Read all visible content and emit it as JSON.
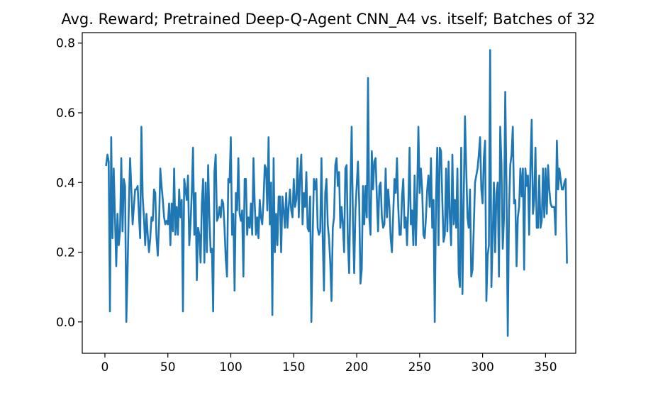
{
  "chart_data": {
    "type": "line",
    "title": "Avg. Reward; Pretrained Deep-Q-Agent CNN_A4 vs. itself; Batches of 32",
    "xlabel": "",
    "ylabel": "",
    "xlim": [
      -18,
      374
    ],
    "ylim": [
      -0.09,
      0.83
    ],
    "x_ticks": [
      0,
      50,
      100,
      150,
      200,
      250,
      300,
      350
    ],
    "x_tick_labels": [
      "0",
      "50",
      "100",
      "150",
      "200",
      "250",
      "300",
      "350"
    ],
    "y_ticks": [
      0.0,
      0.2,
      0.4,
      0.6,
      0.8
    ],
    "y_tick_labels": [
      "0.0",
      "0.2",
      "0.4",
      "0.6",
      "0.8"
    ],
    "grid": false,
    "series": [
      {
        "color": "#1f77b4",
        "x_start": 1,
        "x_step": 1,
        "values": [
          0.45,
          0.48,
          0.46,
          0.03,
          0.53,
          0.24,
          0.44,
          0.3,
          0.16,
          0.31,
          0.22,
          0.26,
          0.47,
          0.26,
          0.41,
          0.39,
          0.0,
          0.15,
          0.33,
          0.47,
          0.38,
          0.28,
          0.33,
          0.38,
          0.38,
          0.39,
          0.31,
          0.24,
          0.56,
          0.36,
          0.3,
          0.22,
          0.31,
          0.25,
          0.2,
          0.24,
          0.3,
          0.29,
          0.38,
          0.37,
          0.24,
          0.19,
          0.28,
          0.44,
          0.39,
          0.35,
          0.3,
          0.28,
          0.29,
          0.28,
          0.34,
          0.22,
          0.34,
          0.26,
          0.44,
          0.25,
          0.33,
          0.25,
          0.38,
          0.3,
          0.35,
          0.03,
          0.41,
          0.38,
          0.35,
          0.42,
          0.22,
          0.28,
          0.37,
          0.5,
          0.25,
          0.37,
          0.12,
          0.27,
          0.25,
          0.17,
          0.34,
          0.41,
          0.17,
          0.4,
          0.2,
          0.45,
          0.3,
          0.2,
          0.21,
          0.03,
          0.43,
          0.48,
          0.29,
          0.3,
          0.33,
          0.3,
          0.35,
          0.34,
          0.27,
          0.18,
          0.13,
          0.41,
          0.4,
          0.53,
          0.25,
          0.31,
          0.09,
          0.37,
          0.32,
          0.47,
          0.31,
          0.29,
          0.32,
          0.13,
          0.41,
          0.41,
          0.25,
          0.3,
          0.27,
          0.34,
          0.25,
          0.47,
          0.34,
          0.25,
          0.3,
          0.24,
          0.35,
          0.3,
          0.28,
          0.35,
          0.45,
          0.44,
          0.32,
          0.53,
          0.28,
          0.4,
          0.02,
          0.47,
          0.2,
          0.31,
          0.22,
          0.36,
          0.36,
          0.2,
          0.36,
          0.32,
          0.27,
          0.37,
          0.27,
          0.33,
          0.38,
          0.32,
          0.3,
          0.41,
          0.33,
          0.35,
          0.47,
          0.3,
          0.42,
          0.48,
          0.28,
          0.37,
          0.33,
          0.43,
          0.27,
          0.26,
          0.36,
          0.0,
          0.24,
          0.41,
          0.38,
          0.41,
          0.27,
          0.25,
          0.26,
          0.47,
          0.24,
          0.09,
          0.37,
          0.41,
          0.28,
          0.24,
          0.17,
          0.06,
          0.27,
          0.3,
          0.45,
          0.47,
          0.39,
          0.43,
          0.27,
          0.33,
          0.28,
          0.2,
          0.44,
          0.45,
          0.23,
          0.14,
          0.38,
          0.56,
          0.29,
          0.14,
          0.32,
          0.39,
          0.46,
          0.34,
          0.11,
          0.15,
          0.39,
          0.28,
          0.39,
          0.3,
          0.7,
          0.3,
          0.25,
          0.49,
          0.38,
          0.46,
          0.47,
          0.36,
          0.26,
          0.39,
          0.4,
          0.3,
          0.27,
          0.28,
          0.44,
          0.3,
          0.38,
          0.33,
          0.24,
          0.2,
          0.31,
          0.41,
          0.37,
          0.47,
          0.33,
          0.25,
          0.25,
          0.36,
          0.41,
          0.27,
          0.3,
          0.22,
          0.33,
          0.5,
          0.28,
          0.32,
          0.22,
          0.42,
          0.22,
          0.36,
          0.56,
          0.37,
          0.44,
          0.38,
          0.25,
          0.24,
          0.3,
          0.38,
          0.42,
          0.33,
          0.47,
          0.27,
          0.35,
          0.0,
          0.35,
          0.5,
          0.22,
          0.5,
          0.49,
          0.35,
          0.23,
          0.25,
          0.44,
          0.26,
          0.46,
          0.3,
          0.22,
          0.48,
          0.28,
          0.35,
          0.27,
          0.44,
          0.14,
          0.1,
          0.5,
          0.08,
          0.35,
          0.59,
          0.44,
          0.3,
          0.27,
          0.38,
          0.13,
          0.15,
          0.27,
          0.4,
          0.42,
          0.44,
          0.48,
          0.53,
          0.38,
          0.34,
          0.47,
          0.52,
          0.06,
          0.19,
          0.22,
          0.78,
          0.1,
          0.24,
          0.4,
          0.2,
          0.37,
          0.4,
          0.13,
          0.56,
          0.45,
          0.21,
          0.3,
          0.66,
          0.38,
          -0.04,
          0.32,
          0.45,
          0.48,
          0.56,
          0.34,
          0.35,
          0.16,
          0.3,
          0.33,
          0.44,
          0.36,
          0.44,
          0.15,
          0.44,
          0.39,
          0.42,
          0.25,
          0.45,
          0.58,
          0.31,
          0.35,
          0.5,
          0.27,
          0.27,
          0.42,
          0.27,
          0.29,
          0.44,
          0.3,
          0.44,
          0.31,
          0.45,
          0.38,
          0.34,
          0.33,
          0.33,
          0.33,
          0.25,
          0.52,
          0.38,
          0.44,
          0.41,
          0.38,
          0.38,
          0.4,
          0.41,
          0.17
        ]
      }
    ]
  }
}
